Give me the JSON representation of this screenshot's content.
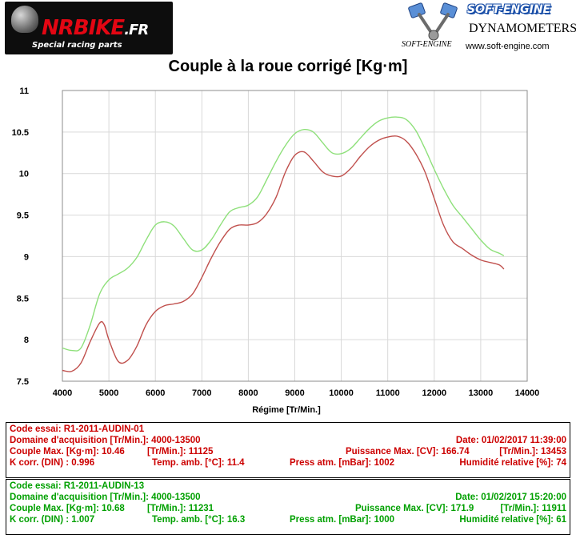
{
  "header": {
    "left_logo": {
      "brand": "NRBIKE",
      "brand_suffix": ".FR",
      "tagline": "Special racing parts"
    },
    "right_logo": {
      "brand": "SOFT-ENGINE",
      "product": "DYNAMOMETERS",
      "small_mark": "SOFT-ENGINE",
      "url": "www.soft-engine.com"
    }
  },
  "colors": {
    "red_curve": "#c0504d",
    "green_curve": "#8ee07a",
    "red_text": "#cc0000",
    "green_text": "#00a000",
    "grid": "#d9d9d9"
  },
  "chart_data": {
    "type": "line",
    "title": "Couple à la roue corrigé [Kg·m]",
    "xlabel": "Régime [Tr/Min.]",
    "ylabel": "",
    "xlim": [
      4000,
      14000
    ],
    "ylim": [
      7.5,
      11
    ],
    "x_ticks": [
      "4000",
      "5000",
      "6000",
      "7000",
      "8000",
      "9000",
      "10000",
      "11000",
      "12000",
      "13000",
      "14000"
    ],
    "y_ticks": [
      "7.5",
      "8",
      "8.5",
      "9",
      "9.5",
      "10",
      "10.5",
      "11"
    ],
    "grid": true,
    "series": [
      {
        "name": "R1-2011-AUDIN-01",
        "color": "#c0504d",
        "x": [
          4000,
          4200,
          4400,
          4600,
          4800,
          4900,
          5000,
          5200,
          5400,
          5600,
          5800,
          6000,
          6200,
          6400,
          6600,
          6800,
          7000,
          7200,
          7400,
          7600,
          7800,
          8000,
          8200,
          8400,
          8600,
          8800,
          9000,
          9200,
          9400,
          9600,
          9800,
          10000,
          10200,
          10400,
          10600,
          10800,
          11000,
          11200,
          11400,
          11600,
          11800,
          12000,
          12200,
          12400,
          12600,
          12800,
          13000,
          13200,
          13400,
          13500
        ],
        "y": [
          7.63,
          7.62,
          7.72,
          7.98,
          8.2,
          8.18,
          8.0,
          7.74,
          7.75,
          7.92,
          8.18,
          8.34,
          8.41,
          8.43,
          8.46,
          8.55,
          8.75,
          8.98,
          9.18,
          9.33,
          9.38,
          9.38,
          9.41,
          9.52,
          9.72,
          10.02,
          10.22,
          10.26,
          10.15,
          10.02,
          9.97,
          9.97,
          10.06,
          10.2,
          10.32,
          10.4,
          10.44,
          10.45,
          10.39,
          10.24,
          10.02,
          9.7,
          9.38,
          9.18,
          9.1,
          9.02,
          8.96,
          8.93,
          8.9,
          8.85
        ]
      },
      {
        "name": "R1-2011-AUDIN-13",
        "color": "#8ee07a",
        "x": [
          4000,
          4200,
          4400,
          4600,
          4800,
          5000,
          5200,
          5400,
          5600,
          5800,
          6000,
          6200,
          6400,
          6600,
          6800,
          7000,
          7200,
          7400,
          7600,
          7800,
          8000,
          8200,
          8400,
          8600,
          8800,
          9000,
          9200,
          9400,
          9600,
          9800,
          10000,
          10200,
          10400,
          10600,
          10800,
          11000,
          11200,
          11400,
          11600,
          11800,
          12000,
          12200,
          12400,
          12600,
          12800,
          13000,
          13200,
          13400,
          13500
        ],
        "y": [
          7.9,
          7.87,
          7.9,
          8.18,
          8.55,
          8.72,
          8.79,
          8.86,
          8.99,
          9.2,
          9.38,
          9.42,
          9.37,
          9.22,
          9.08,
          9.08,
          9.2,
          9.38,
          9.54,
          9.59,
          9.62,
          9.72,
          9.93,
          10.15,
          10.34,
          10.48,
          10.53,
          10.5,
          10.37,
          10.25,
          10.24,
          10.3,
          10.42,
          10.54,
          10.63,
          10.67,
          10.68,
          10.65,
          10.52,
          10.3,
          10.05,
          9.82,
          9.62,
          9.48,
          9.34,
          9.2,
          9.09,
          9.04,
          9.01
        ]
      }
    ]
  },
  "runs": [
    {
      "code": "Code essai: R1-2011-AUDIN-01",
      "domaine": "Domaine d'acquisition [Tr/Min.]: 4000-13500",
      "date": "Date: 01/02/2017   11:39:00",
      "couple": "Couple Max. [Kg·m]: 10.46",
      "couple_rpm": "[Tr/Min.]: 11125",
      "puissance": "Puissance Max. [CV]: 166.74",
      "puissance_rpm": "[Tr/Min.]: 13453",
      "kcorr": "K corr. (DIN) : 0.996",
      "temp": "Temp. amb. [°C]: 11.4",
      "press": "Press atm. [mBar]: 1002",
      "humid": "Humidité relative [%]: 74"
    },
    {
      "code": "Code essai: R1-2011-AUDIN-13",
      "domaine": "Domaine d'acquisition [Tr/Min.]: 4000-13500",
      "date": "Date: 01/02/2017   15:20:00",
      "couple": "Couple Max. [Kg·m]: 10.68",
      "couple_rpm": "[Tr/Min.]: 11231",
      "puissance": "Puissance Max. [CV]: 171.9",
      "puissance_rpm": "[Tr/Min.]: 11911",
      "kcorr": "K corr. (DIN) : 1.007",
      "temp": "Temp. amb. [°C]: 16.3",
      "press": "Press atm. [mBar]: 1000",
      "humid": "Humidité relative [%]: 61"
    }
  ]
}
